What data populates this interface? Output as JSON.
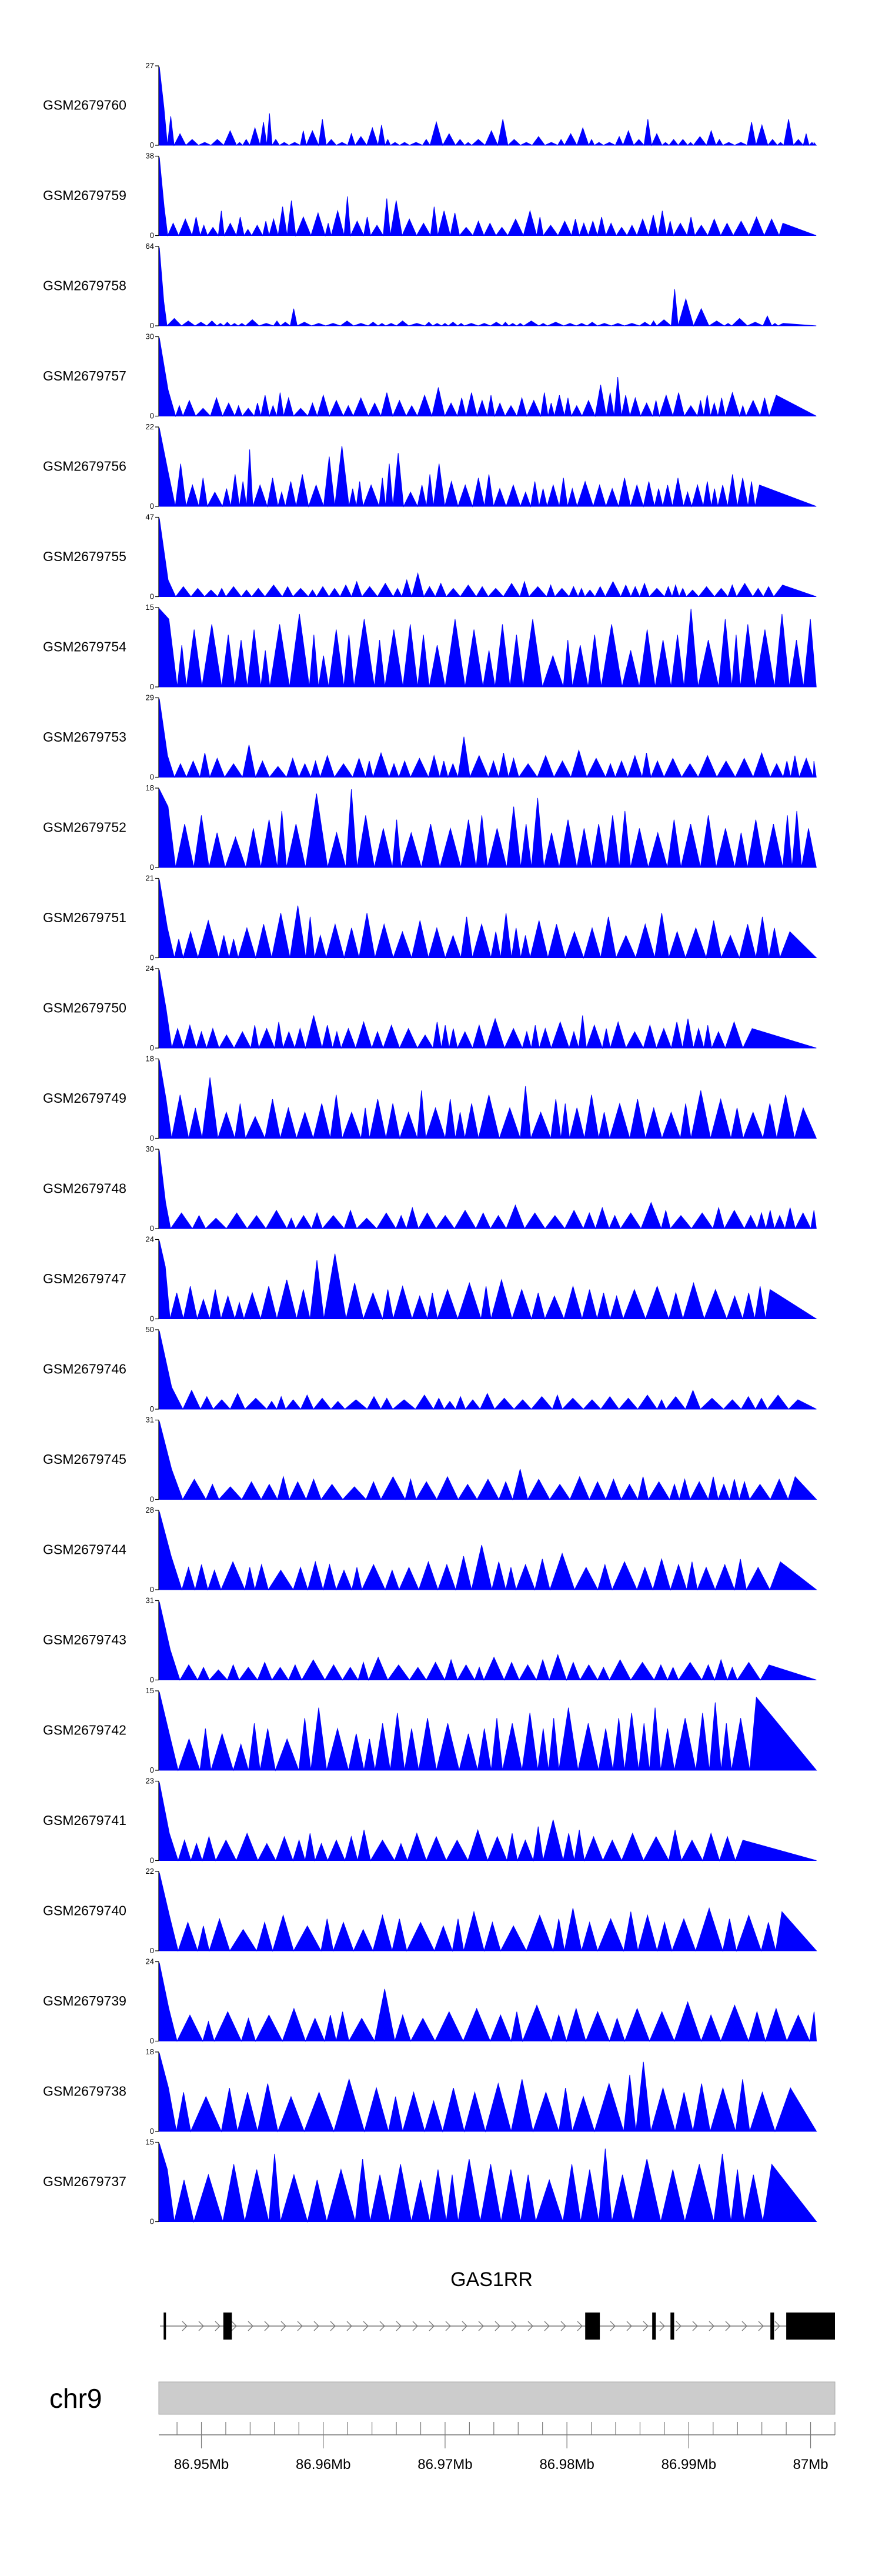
{
  "chart_data": {
    "type": "area",
    "tracks": [
      {
        "name": "GSM2679760",
        "ymax": 27,
        "seed": 760,
        "values": [
          27,
          13,
          10,
          4,
          2,
          1,
          2,
          5,
          1,
          2,
          6,
          8,
          11,
          2,
          1,
          1,
          5,
          5,
          9,
          2,
          1,
          4,
          3,
          6,
          7,
          2,
          1,
          1,
          1,
          2,
          8,
          4,
          2,
          1,
          2,
          5,
          9,
          2,
          1,
          3,
          1,
          2,
          4,
          6,
          2,
          1,
          1,
          3,
          5,
          2,
          9,
          4,
          1,
          2,
          2,
          1,
          3,
          5,
          2,
          1,
          1,
          8,
          7,
          2,
          1,
          9,
          2,
          4,
          1,
          1
        ]
      },
      {
        "name": "GSM2679759",
        "ymax": 38,
        "seed": 759,
        "values": [
          38,
          14,
          6,
          8,
          9,
          5,
          4,
          12,
          6,
          9,
          3,
          5,
          7,
          8,
          14,
          17,
          9,
          11,
          6,
          12,
          19,
          7,
          9,
          5,
          18,
          17,
          8,
          6,
          14,
          12,
          11,
          4,
          7,
          6,
          4,
          8,
          12,
          9,
          5,
          7,
          8,
          6,
          7,
          9,
          6,
          4,
          5,
          8,
          10,
          12,
          7,
          6,
          9,
          5,
          8,
          6,
          7,
          9,
          8,
          6
        ]
      },
      {
        "name": "GSM2679758",
        "ymax": 64,
        "seed": 758,
        "values": [
          64,
          20,
          6,
          4,
          3,
          4,
          2,
          3,
          2,
          2,
          5,
          2,
          4,
          3,
          14,
          3,
          2,
          2,
          4,
          2,
          3,
          2,
          2,
          4,
          2,
          3,
          2,
          2,
          3,
          2,
          2,
          2,
          3,
          3,
          2,
          2,
          4,
          2,
          3,
          2,
          2,
          3,
          2,
          2,
          2,
          3,
          4,
          5,
          30,
          22,
          14,
          4,
          2,
          6,
          3,
          8,
          2,
          2
        ]
      },
      {
        "name": "GSM2679757",
        "ymax": 30,
        "seed": 757,
        "values": [
          30,
          10,
          4,
          6,
          3,
          7,
          5,
          4,
          3,
          5,
          8,
          4,
          9,
          7,
          3,
          5,
          8,
          6,
          4,
          7,
          5,
          9,
          6,
          4,
          8,
          11,
          5,
          7,
          9,
          6,
          8,
          5,
          4,
          7,
          6,
          9,
          5,
          8,
          7,
          4,
          6,
          12,
          9,
          15,
          8,
          7,
          5,
          6,
          8,
          9,
          4,
          6,
          8,
          5,
          7,
          9,
          4,
          6,
          7,
          8
        ]
      },
      {
        "name": "GSM2679756",
        "ymax": 22,
        "seed": 756,
        "values": [
          22,
          10,
          12,
          6,
          8,
          4,
          5,
          9,
          7,
          16,
          6,
          8,
          4,
          7,
          9,
          6,
          14,
          17,
          5,
          7,
          6,
          8,
          12,
          15,
          4,
          6,
          9,
          12,
          7,
          6,
          8,
          9,
          5,
          6,
          4,
          7,
          5,
          6,
          8,
          5,
          7,
          6,
          5,
          8,
          6,
          7,
          5,
          6,
          8,
          4,
          6,
          7,
          5,
          6,
          9,
          8,
          7,
          6
        ]
      },
      {
        "name": "GSM2679755",
        "ymax": 47,
        "seed": 755,
        "values": [
          47,
          10,
          6,
          5,
          4,
          5,
          6,
          4,
          5,
          7,
          6,
          5,
          4,
          6,
          5,
          7,
          9,
          6,
          8,
          5,
          10,
          14,
          6,
          8,
          5,
          7,
          6,
          5,
          8,
          9,
          6,
          7,
          5,
          6,
          5,
          4,
          6,
          9,
          7,
          6,
          8,
          5,
          6,
          7,
          5,
          4,
          6,
          5,
          7,
          8,
          5,
          6,
          7
        ]
      },
      {
        "name": "GSM2679754",
        "ymax": 15,
        "seed": 754,
        "values": [
          15,
          13,
          8,
          11,
          12,
          10,
          9,
          11,
          7,
          12,
          14,
          10,
          6,
          11,
          10,
          13,
          9,
          11,
          12,
          10,
          8,
          13,
          11,
          7,
          12,
          10,
          13,
          6,
          9,
          8,
          10,
          12,
          7,
          11,
          9,
          10,
          15,
          9,
          13,
          10,
          12,
          11,
          14,
          9,
          13
        ]
      },
      {
        "name": "GSM2679753",
        "ymax": 29,
        "seed": 753,
        "values": [
          29,
          8,
          5,
          6,
          9,
          7,
          5,
          12,
          6,
          4,
          7,
          5,
          6,
          8,
          5,
          7,
          6,
          9,
          5,
          6,
          7,
          8,
          6,
          5,
          15,
          8,
          6,
          9,
          7,
          5,
          8,
          6,
          10,
          7,
          5,
          6,
          8,
          9,
          6,
          7,
          5,
          8,
          6,
          7,
          9,
          5,
          6,
          8,
          7,
          6
        ]
      },
      {
        "name": "GSM2679752",
        "ymax": 18,
        "seed": 752,
        "values": [
          18,
          14,
          10,
          12,
          8,
          7,
          9,
          11,
          13,
          10,
          17,
          8,
          18,
          12,
          9,
          11,
          8,
          10,
          9,
          11,
          12,
          9,
          14,
          10,
          16,
          8,
          11,
          9,
          10,
          12,
          13,
          9,
          8,
          11,
          10,
          12,
          9,
          8,
          11,
          10,
          12,
          13,
          9
        ]
      },
      {
        "name": "GSM2679751",
        "ymax": 21,
        "seed": 751,
        "values": [
          21,
          8,
          5,
          7,
          10,
          6,
          5,
          8,
          9,
          12,
          14,
          11,
          6,
          9,
          8,
          12,
          9,
          7,
          10,
          8,
          6,
          11,
          9,
          7,
          12,
          8,
          6,
          10,
          9,
          7,
          8,
          11,
          6,
          9,
          12,
          7,
          8,
          10,
          6,
          9,
          11,
          8,
          7
        ]
      },
      {
        "name": "GSM2679750",
        "ymax": 24,
        "seed": 750,
        "values": [
          24,
          12,
          6,
          7,
          5,
          6,
          4,
          5,
          7,
          6,
          8,
          5,
          6,
          10,
          7,
          5,
          6,
          8,
          5,
          7,
          6,
          4,
          8,
          7,
          6,
          5,
          7,
          9,
          6,
          5,
          7,
          6,
          8,
          5,
          10,
          7,
          6,
          8,
          5,
          7,
          6,
          8,
          9,
          6,
          7,
          5,
          8,
          6
        ]
      },
      {
        "name": "GSM2679749",
        "ymax": 18,
        "seed": 749,
        "values": [
          18,
          9,
          10,
          7,
          14,
          6,
          8,
          5,
          9,
          7,
          6,
          8,
          10,
          6,
          7,
          9,
          8,
          6,
          11,
          7,
          9,
          6,
          8,
          10,
          7,
          12,
          6,
          9,
          8,
          7,
          10,
          6,
          8,
          9,
          7,
          6,
          8,
          11,
          9,
          7,
          6,
          8,
          10,
          7
        ]
      },
      {
        "name": "GSM2679748",
        "ymax": 30,
        "seed": 748,
        "values": [
          30,
          10,
          6,
          5,
          4,
          6,
          5,
          7,
          4,
          5,
          6,
          5,
          7,
          4,
          6,
          5,
          8,
          6,
          5,
          7,
          6,
          5,
          9,
          6,
          5,
          7,
          6,
          8,
          5,
          6,
          10,
          7,
          5,
          6,
          8,
          7,
          5,
          6,
          7,
          5,
          8,
          6,
          7
        ]
      },
      {
        "name": "GSM2679747",
        "ymax": 24,
        "seed": 747,
        "values": [
          24,
          16,
          8,
          10,
          6,
          9,
          7,
          5,
          8,
          10,
          12,
          9,
          18,
          20,
          11,
          8,
          9,
          10,
          7,
          8,
          9,
          11,
          10,
          12,
          9,
          8,
          7,
          10,
          9,
          8,
          7,
          9,
          10,
          8,
          11,
          9,
          7,
          8,
          10,
          9
        ]
      },
      {
        "name": "GSM2679746",
        "ymax": 50,
        "seed": 746,
        "values": [
          50,
          14,
          12,
          8,
          6,
          10,
          7,
          5,
          8,
          6,
          9,
          7,
          5,
          6,
          8,
          7,
          6,
          9,
          7,
          5,
          8,
          6,
          10,
          7,
          6,
          8,
          9,
          7,
          6,
          8,
          7,
          9,
          6,
          8,
          12,
          7,
          6,
          8,
          7,
          9,
          6
        ]
      },
      {
        "name": "GSM2679745",
        "ymax": 31,
        "seed": 745,
        "values": [
          31,
          12,
          8,
          6,
          5,
          7,
          6,
          9,
          7,
          8,
          6,
          5,
          7,
          9,
          8,
          7,
          9,
          6,
          8,
          7,
          12,
          8,
          6,
          9,
          7,
          8,
          6,
          9,
          7,
          6,
          8,
          7,
          9,
          6,
          8,
          7,
          6,
          8,
          9
        ]
      },
      {
        "name": "GSM2679744",
        "ymax": 28,
        "seed": 744,
        "values": [
          28,
          12,
          8,
          9,
          7,
          10,
          8,
          9,
          7,
          8,
          10,
          9,
          7,
          8,
          9,
          7,
          8,
          10,
          9,
          12,
          16,
          10,
          8,
          9,
          11,
          13,
          8,
          9,
          10,
          8,
          11,
          9,
          10,
          8,
          9,
          11,
          8,
          10
        ]
      },
      {
        "name": "GSM2679743",
        "ymax": 31,
        "seed": 743,
        "values": [
          31,
          12,
          6,
          5,
          4,
          6,
          5,
          7,
          5,
          6,
          8,
          6,
          5,
          7,
          9,
          6,
          5,
          7,
          8,
          6,
          5,
          9,
          7,
          6,
          8,
          10,
          7,
          6,
          5,
          8,
          7,
          6,
          5,
          7,
          6,
          8,
          5,
          7,
          6
        ]
      },
      {
        "name": "GSM2679742",
        "ymax": 15,
        "seed": 742,
        "values": [
          15,
          7,
          6,
          8,
          7,
          5,
          9,
          8,
          6,
          10,
          12,
          8,
          7,
          6,
          9,
          11,
          8,
          10,
          9,
          7,
          8,
          10,
          9,
          11,
          8,
          10,
          12,
          9,
          8,
          10,
          11,
          9,
          12,
          8,
          10,
          11,
          13,
          9,
          10,
          14
        ]
      },
      {
        "name": "GSM2679741",
        "ymax": 23,
        "seed": 741,
        "values": [
          23,
          8,
          6,
          5,
          7,
          6,
          8,
          5,
          7,
          6,
          8,
          5,
          6,
          7,
          9,
          6,
          5,
          8,
          7,
          6,
          9,
          7,
          8,
          6,
          10,
          12,
          8,
          9,
          7,
          6,
          8,
          7,
          9,
          6,
          8,
          7,
          6
        ]
      },
      {
        "name": "GSM2679740",
        "ymax": 22,
        "seed": 740,
        "values": [
          22,
          10,
          8,
          7,
          9,
          6,
          8,
          10,
          7,
          9,
          8,
          6,
          10,
          9,
          8,
          7,
          9,
          11,
          8,
          7,
          10,
          9,
          12,
          8,
          9,
          11,
          10,
          8,
          9,
          12,
          9,
          10,
          8,
          11
        ]
      },
      {
        "name": "GSM2679739",
        "ymax": 24,
        "seed": 739,
        "values": [
          24,
          10,
          8,
          6,
          9,
          7,
          8,
          10,
          7,
          8,
          9,
          7,
          16,
          8,
          7,
          9,
          10,
          8,
          9,
          11,
          8,
          10,
          9,
          7,
          10,
          9,
          12,
          8,
          11,
          9,
          10,
          8,
          9
        ]
      },
      {
        "name": "GSM2679738",
        "ymax": 18,
        "seed": 738,
        "values": [
          18,
          10,
          9,
          8,
          10,
          9,
          11,
          8,
          9,
          12,
          10,
          8,
          9,
          7,
          10,
          9,
          11,
          12,
          9,
          10,
          8,
          11,
          13,
          16,
          10,
          9,
          11,
          10,
          12,
          9,
          10
        ]
      },
      {
        "name": "GSM2679737",
        "ymax": 15,
        "seed": 737,
        "values": [
          15,
          10,
          8,
          9,
          11,
          10,
          13,
          9,
          8,
          10,
          12,
          9,
          11,
          8,
          10,
          9,
          12,
          11,
          10,
          9,
          8,
          11,
          10,
          14,
          9,
          12,
          10,
          11,
          13,
          10,
          9,
          11
        ]
      }
    ],
    "gene": {
      "name": "GAS1RR",
      "exons": [
        [
          86.9469,
          86.947
        ],
        [
          86.9518,
          86.9525
        ],
        [
          86.9815,
          86.9827
        ],
        [
          86.987,
          86.9873
        ],
        [
          86.9885,
          86.9888
        ],
        [
          86.9967,
          86.997
        ],
        [
          86.998,
          87.002
        ]
      ]
    },
    "chromosome": "chr9",
    "xaxis": {
      "range": [
        86.9465,
        87.002
      ],
      "ticks": [
        86.95,
        86.96,
        86.97,
        86.98,
        86.99,
        87.0
      ],
      "tick_labels": [
        "86.95Mb",
        "86.96Mb",
        "86.97Mb",
        "86.98Mb",
        "86.99Mb",
        "87Mb"
      ]
    },
    "colors": {
      "signal": "#0000ff",
      "exon": "#000000",
      "ideogram": "#cccccc"
    }
  }
}
